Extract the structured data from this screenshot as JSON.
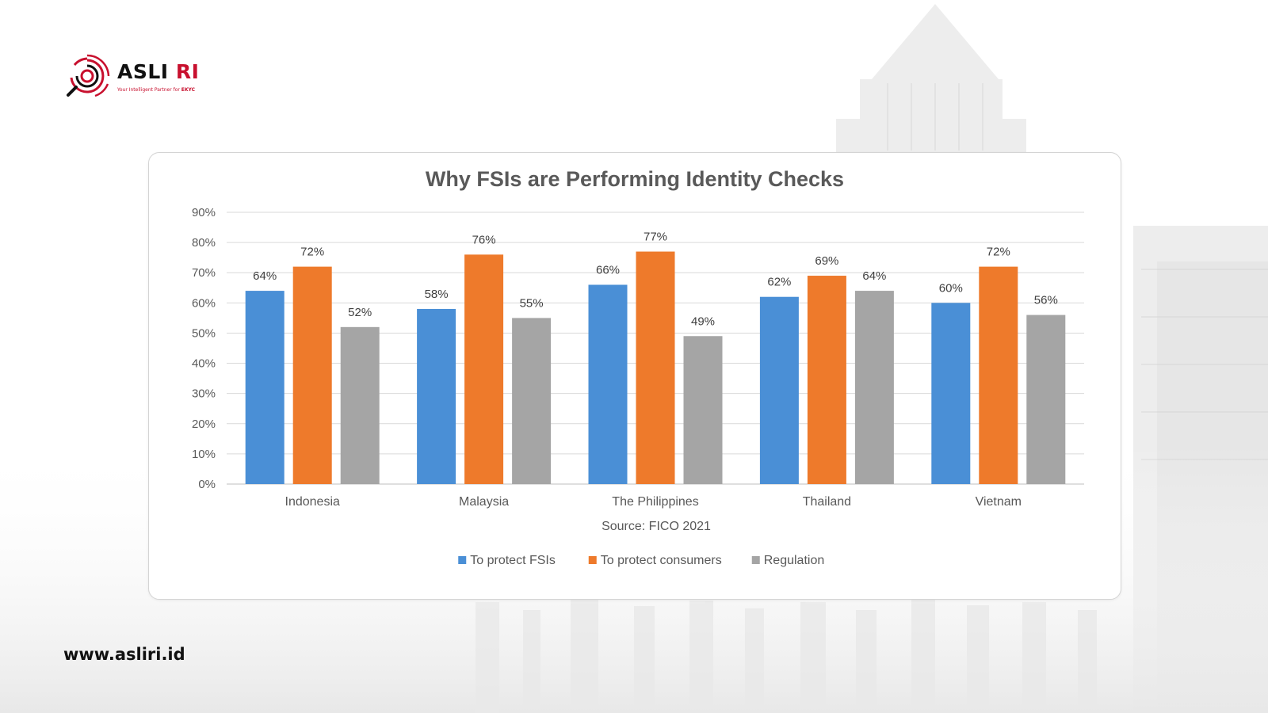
{
  "branding": {
    "logo_name": "ASLI",
    "logo_accent": "RI",
    "tagline": "Your Intelligent Partner for ",
    "tagline_bold": "EKYC",
    "website": "www.asliri.id",
    "brand_color": "#c8102e"
  },
  "chart_data": {
    "type": "bar",
    "title": "Why FSIs are Performing Identity Checks",
    "source": "Source: FICO 2021",
    "categories": [
      "Indonesia",
      "Malaysia",
      "The Philippines",
      "Thailand",
      "Vietnam"
    ],
    "series": [
      {
        "name": "To protect FSIs",
        "values": [
          64,
          58,
          66,
          62,
          60
        ],
        "color": "#4a8fd6"
      },
      {
        "name": "To protect consumers",
        "values": [
          72,
          76,
          77,
          69,
          72
        ],
        "color": "#ee7a2b"
      },
      {
        "name": "Regulation",
        "values": [
          52,
          55,
          49,
          64,
          56
        ],
        "color": "#a5a5a5"
      }
    ],
    "ylim": [
      0,
      90
    ],
    "yticks": [
      "0%",
      "10%",
      "20%",
      "30%",
      "40%",
      "50%",
      "60%",
      "70%",
      "80%",
      "90%"
    ],
    "value_suffix": "%",
    "grid": true,
    "legend_position": "bottom"
  }
}
